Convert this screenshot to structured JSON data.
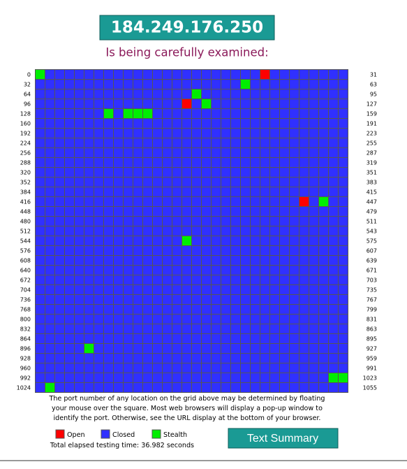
{
  "header": {
    "ip": "184.249.176.250",
    "subtitle": "Is being carefully examined:"
  },
  "grid": {
    "rows": [
      {
        "start": "0",
        "end": "31"
      },
      {
        "start": "32",
        "end": "63"
      },
      {
        "start": "64",
        "end": "95"
      },
      {
        "start": "96",
        "end": "127"
      },
      {
        "start": "128",
        "end": "159"
      },
      {
        "start": "160",
        "end": "191"
      },
      {
        "start": "192",
        "end": "223"
      },
      {
        "start": "224",
        "end": "255"
      },
      {
        "start": "256",
        "end": "287"
      },
      {
        "start": "288",
        "end": "319"
      },
      {
        "start": "320",
        "end": "351"
      },
      {
        "start": "352",
        "end": "383"
      },
      {
        "start": "384",
        "end": "415"
      },
      {
        "start": "416",
        "end": "447"
      },
      {
        "start": "448",
        "end": "479"
      },
      {
        "start": "480",
        "end": "511"
      },
      {
        "start": "512",
        "end": "543"
      },
      {
        "start": "544",
        "end": "575"
      },
      {
        "start": "576",
        "end": "607"
      },
      {
        "start": "608",
        "end": "639"
      },
      {
        "start": "640",
        "end": "671"
      },
      {
        "start": "672",
        "end": "703"
      },
      {
        "start": "704",
        "end": "735"
      },
      {
        "start": "736",
        "end": "767"
      },
      {
        "start": "768",
        "end": "799"
      },
      {
        "start": "800",
        "end": "831"
      },
      {
        "start": "832",
        "end": "863"
      },
      {
        "start": "864",
        "end": "895"
      },
      {
        "start": "896",
        "end": "927"
      },
      {
        "start": "928",
        "end": "959"
      },
      {
        "start": "960",
        "end": "991"
      },
      {
        "start": "992",
        "end": "1023"
      },
      {
        "start": "1024",
        "end": "1055"
      }
    ],
    "open_ports": [
      23,
      111,
      443
    ],
    "stealth_ports": [
      0,
      53,
      80,
      113,
      135,
      137,
      138,
      139,
      445,
      559,
      901,
      1022,
      1023,
      1025
    ],
    "colors": {
      "open": "#ff0000",
      "closed": "#3030ff",
      "stealth": "#00ee00"
    }
  },
  "footer": {
    "note": [
      "The port number of any location on the grid above may be determined by floating",
      "your mouse over the square. Most web browsers will display a pop-up window to",
      "identify the port. Otherwise, see the URL display at the bottom of your browser."
    ],
    "legend": {
      "open": "Open",
      "closed": "Closed",
      "stealth": "Stealth"
    },
    "elapsed": "Total elapsed testing time: 36.982 seconds",
    "button": "Text Summary"
  }
}
